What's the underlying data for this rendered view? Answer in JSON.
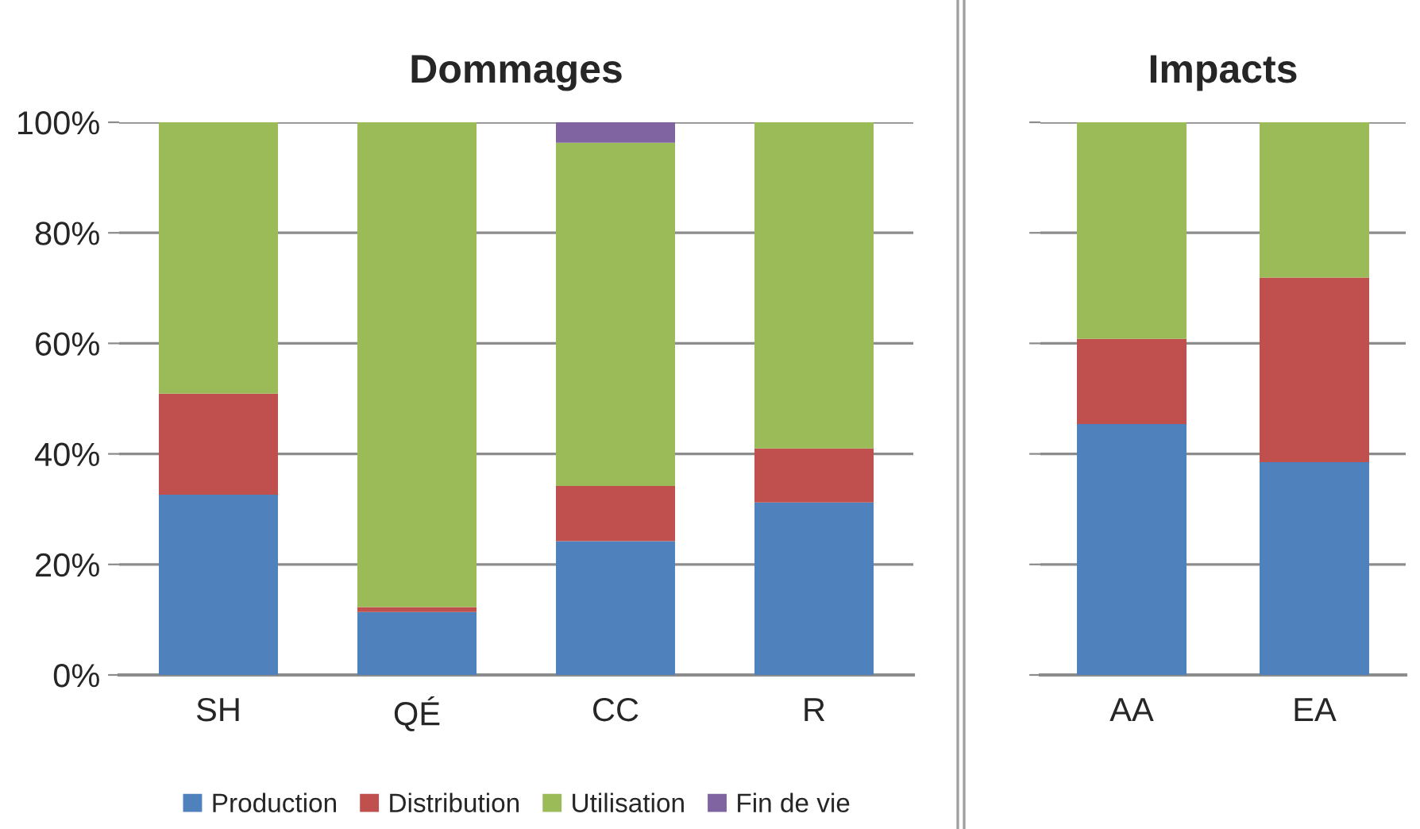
{
  "chart_data": [
    {
      "type": "bar",
      "title": "Dommages",
      "stacked": true,
      "categories": [
        "SH",
        "QÉ",
        "CC",
        "R"
      ],
      "series": [
        {
          "name": "Production",
          "color": "#4f81bd",
          "values": [
            32.6,
            11.4,
            24.2,
            31.2
          ]
        },
        {
          "name": "Distribution",
          "color": "#c0504d",
          "values": [
            18.3,
            0.9,
            10.0,
            9.8
          ]
        },
        {
          "name": "Utilisation",
          "color": "#9bbb59",
          "values": [
            49.1,
            87.7,
            62.1,
            59.0
          ]
        },
        {
          "name": "Fin de vie",
          "color": "#8064a2",
          "values": [
            null,
            null,
            3.7,
            null
          ]
        }
      ],
      "ylim": [
        0,
        100
      ],
      "yticks": [
        {
          "value": 0,
          "label": "0%"
        },
        {
          "value": 20,
          "label": "20%"
        },
        {
          "value": 40,
          "label": "40%"
        },
        {
          "value": 60,
          "label": "60%"
        },
        {
          "value": 80,
          "label": "80%"
        },
        {
          "value": 100,
          "label": "100%"
        }
      ],
      "grid": "y",
      "legend": "bottom"
    },
    {
      "type": "bar",
      "title": "Impacts",
      "stacked": true,
      "categories": [
        "AA",
        "EA"
      ],
      "series": [
        {
          "color": "#4f81bd",
          "values": [
            45.4,
            38.5
          ]
        },
        {
          "color": "#c0504d",
          "values": [
            15.4,
            33.4
          ]
        },
        {
          "color": "#9bbb59",
          "values": [
            39.2,
            28.1
          ]
        }
      ],
      "ylim": [
        0,
        100
      ],
      "yticks": [
        {
          "value": 0,
          "label": null
        },
        {
          "value": 20,
          "label": null
        },
        {
          "value": 40,
          "label": null
        },
        {
          "value": 60,
          "label": null
        },
        {
          "value": 80,
          "label": null
        },
        {
          "value": 100,
          "label": null
        }
      ],
      "grid": "y",
      "tick_labels": "x"
    }
  ]
}
